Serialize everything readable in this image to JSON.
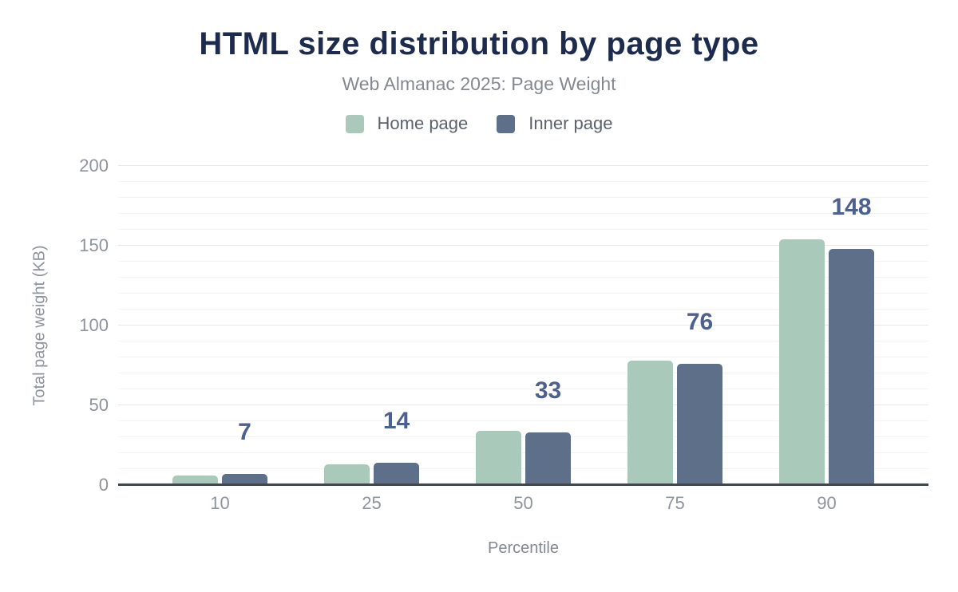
{
  "chart_data": {
    "type": "bar",
    "title": "HTML size distribution by page type",
    "subtitle": "Web Almanac 2025: Page Weight",
    "categories": [
      "10",
      "25",
      "50",
      "75",
      "90"
    ],
    "series": [
      {
        "name": "Home page",
        "color": "#a9cabb",
        "values": [
          6,
          13,
          34,
          78,
          154
        ]
      },
      {
        "name": "Inner page",
        "color": "#5e6f8a",
        "values": [
          7,
          14,
          33,
          76,
          148
        ]
      }
    ],
    "value_labels": {
      "labeled_series": "Inner page",
      "values": [
        "7",
        "14",
        "33",
        "76",
        "148"
      ]
    },
    "xlabel": "Percentile",
    "ylabel": "Total page weight (KB)",
    "ylim": [
      0,
      200
    ],
    "yticks": [
      0,
      50,
      100,
      150,
      200
    ],
    "grid": {
      "minor_step": 10,
      "major_step": 50,
      "visible": true
    },
    "legend_position": "top"
  },
  "colors": {
    "title": "#1d2b4e",
    "subtitle": "#84898f",
    "axis_text": "#8e939c",
    "legend_text": "#5b626c",
    "value_label": "#4d6190",
    "baseline": "#42474e",
    "home_page_bar": "#a9cabb",
    "inner_page_bar": "#5e6f8a"
  }
}
